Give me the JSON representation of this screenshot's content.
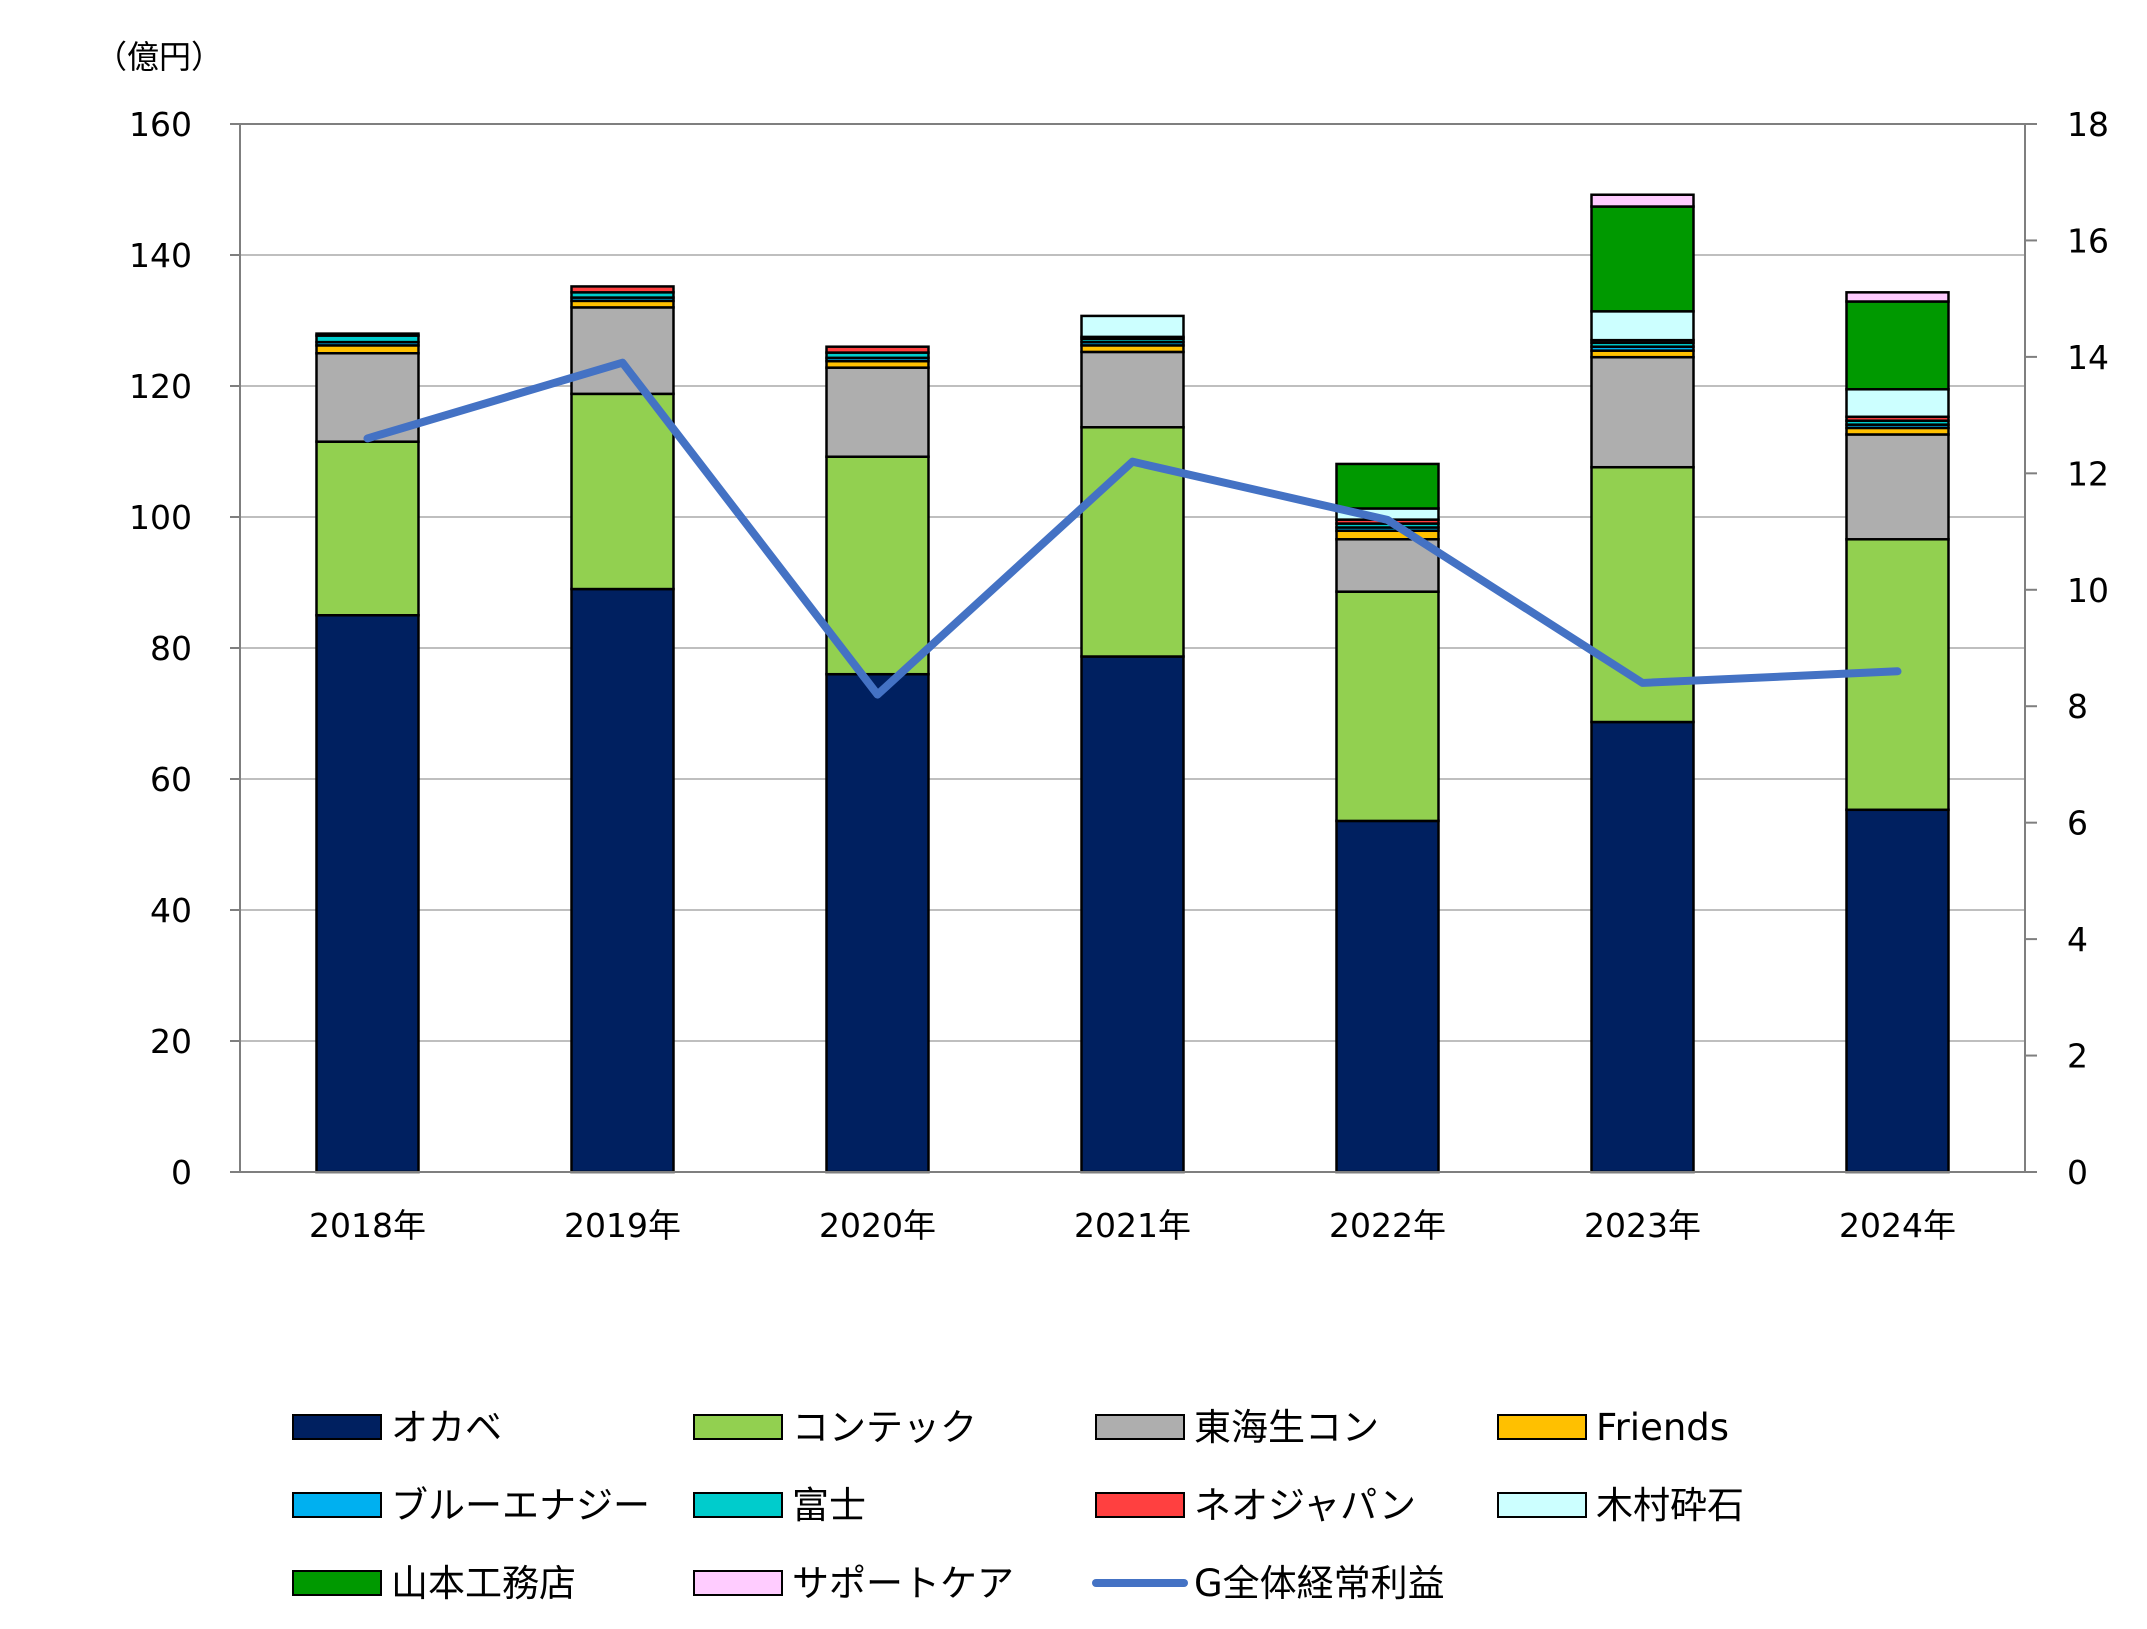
{
  "chart_data": {
    "type": "bar",
    "stacked": true,
    "unit_label": "（億円）",
    "categories": [
      "2018年",
      "2019年",
      "2020年",
      "2021年",
      "2022年",
      "2023年",
      "2024年"
    ],
    "y_left": {
      "min": 0,
      "max": 160,
      "ticks": [
        "0",
        "20",
        "40",
        "60",
        "80",
        "100",
        "120",
        "140",
        "160"
      ]
    },
    "y_right": {
      "min": 0,
      "max": 18,
      "ticks": [
        "0",
        "2",
        "4",
        "6",
        "8",
        "10",
        "12",
        "14",
        "16",
        "18"
      ]
    },
    "grid": true,
    "series": [
      {
        "name": "オカベ",
        "color": "#002060",
        "values": [
          85,
          89,
          76,
          78.7,
          53.6,
          68.7,
          55.3
        ]
      },
      {
        "name": "コンテック",
        "color": "#92D050",
        "values": [
          26.5,
          29.8,
          33.2,
          35,
          35,
          38.9,
          41.3
        ]
      },
      {
        "name": "東海生コン",
        "color": "#AEAEAE",
        "values": [
          13.5,
          13.2,
          13.6,
          11.5,
          8,
          16.8,
          16
        ]
      },
      {
        "name": "Friends",
        "color": "#FFC000",
        "values": [
          1.2,
          1.0,
          1.0,
          1.0,
          1.3,
          1.0,
          1.0
        ]
      },
      {
        "name": "ブルーエナジー",
        "color": "#00B0F0",
        "values": [
          0.5,
          0.5,
          0.5,
          0.5,
          0.5,
          0.6,
          0.5
        ]
      },
      {
        "name": "富士",
        "color": "#00CCCC",
        "values": [
          1.0,
          0.8,
          0.8,
          0.5,
          0.6,
          0.6,
          0.6
        ]
      },
      {
        "name": "ネオジャパン",
        "color": "#FF4040",
        "values": [
          0.3,
          0.9,
          0.9,
          0.3,
          0.6,
          0.4,
          0.6
        ]
      },
      {
        "name": "木村砕石",
        "color": "#CCFFFF",
        "values": [
          0,
          0,
          0,
          3.2,
          1.7,
          4.4,
          4.2
        ]
      },
      {
        "name": "山本工務店",
        "color": "#009900",
        "values": [
          0,
          0,
          0,
          0,
          6.8,
          16,
          13.4
        ]
      },
      {
        "name": "サポートケア",
        "color": "#FFCCFF",
        "values": [
          0,
          0,
          0,
          0,
          0,
          1.8,
          1.4
        ]
      }
    ],
    "line": {
      "name": "G全体経常利益",
      "color": "#4472C4",
      "axis": "right",
      "values": [
        12.6,
        13.9,
        8.2,
        12.2,
        11.2,
        8.4,
        8.6
      ]
    },
    "legend_position": "bottom"
  }
}
